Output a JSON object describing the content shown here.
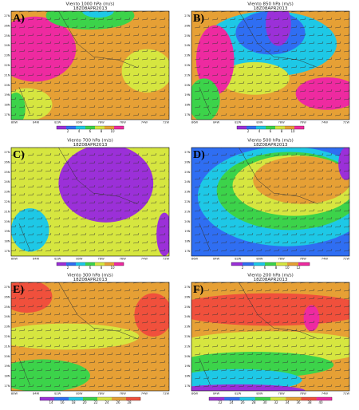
{
  "lat_ticks": [
    "27N",
    "26N",
    "25N",
    "24N",
    "23N",
    "22N",
    "21N",
    "20N",
    "19N",
    "18N",
    "17N"
  ],
  "lon_ticks": [
    "86W",
    "84W",
    "82W",
    "80W",
    "78W",
    "76W",
    "74W",
    "72W"
  ],
  "panels": [
    {
      "label": "A)",
      "title": "Viento 1000 hPa (m/s)",
      "time": "18Z08APR2013",
      "colorbar": {
        "labels": [
          "2",
          "4",
          "6",
          "8",
          "10"
        ],
        "colors": [
          "#9b30d8",
          "#2f6ef2",
          "#1ec8e6",
          "#3cd34a",
          "#d6e640",
          "#e6a035",
          "#ee2aa0"
        ]
      }
    },
    {
      "label": "B)",
      "title": "Viento 850 hPa (m/s)",
      "time": "18Z08APR2013",
      "colorbar": {
        "labels": [
          "2",
          "4",
          "6",
          "8",
          "10"
        ],
        "colors": [
          "#9b30d8",
          "#2f6ef2",
          "#1ec8e6",
          "#3cd34a",
          "#d6e640",
          "#e6a035",
          "#ee2aa0"
        ]
      }
    },
    {
      "label": "C)",
      "title": "Viento 700 hPa (m/s)",
      "time": "18Z08APR2013",
      "colorbar": {
        "labels": [
          "2",
          "4",
          "6",
          "8",
          "10"
        ],
        "colors": [
          "#9b30d8",
          "#2f6ef2",
          "#1ec8e6",
          "#3cd34a",
          "#d6e640",
          "#e6a035",
          "#ee2aa0"
        ]
      }
    },
    {
      "label": "D)",
      "title": "Viento 500 hPa (m/s)",
      "time": "18Z08APR2013",
      "colorbar": {
        "labels": [
          "2",
          "4",
          "6",
          "8",
          "10",
          "12"
        ],
        "colors": [
          "#9b30d8",
          "#2f6ef2",
          "#1ec8e6",
          "#3cd34a",
          "#d6e640",
          "#e6a035",
          "#ee2aa0"
        ]
      }
    },
    {
      "label": "E)",
      "title": "Viento 300 hPa (m/s)",
      "time": "18Z08APR2013",
      "colorbar": {
        "labels": [
          "14",
          "16",
          "18",
          "20",
          "22",
          "24",
          "26",
          "28"
        ],
        "colors": [
          "#9b30d8",
          "#2f6ef2",
          "#1ec8e6",
          "#3cd34a",
          "#d6e640",
          "#e6a035",
          "#f0503c"
        ]
      }
    },
    {
      "label": "F)",
      "title": "Viento 200 hPa (m/s)",
      "time": "18Z08APR2013",
      "colorbar": {
        "labels": [
          "22",
          "24",
          "26",
          "28",
          "30",
          "32",
          "34",
          "36",
          "38",
          "40"
        ],
        "colors": [
          "#9b30d8",
          "#2f6ef2",
          "#1ec8e6",
          "#3cd34a",
          "#d6e640",
          "#e6a035",
          "#f0503c",
          "#ee2aa0"
        ]
      }
    }
  ]
}
